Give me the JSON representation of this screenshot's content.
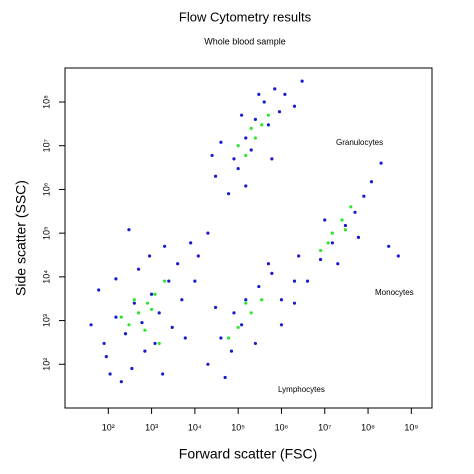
{
  "chart_data": {
    "type": "scatter",
    "title": "Flow Cytometry results",
    "subtitle": "Whole blood sample",
    "x_label": "Forward scatter (FSC)",
    "y_label": "Side scatter (SSC)",
    "log_x": true,
    "log_y": true,
    "grid": false,
    "xlim": [
      10,
      3000000000
    ],
    "ylim": [
      10,
      600000000
    ],
    "xticks": [
      {
        "value": 100,
        "label": "10²"
      },
      {
        "value": 1000,
        "label": "10³"
      },
      {
        "value": 10000,
        "label": "10⁴"
      },
      {
        "value": 100000,
        "label": "10⁵"
      },
      {
        "value": 1000000,
        "label": "10⁶"
      },
      {
        "value": 10000000,
        "label": "10⁷"
      },
      {
        "value": 100000000,
        "label": "10⁸"
      },
      {
        "value": 1000000000,
        "label": "10⁹"
      }
    ],
    "yticks": [
      {
        "value": 100,
        "label": "10²"
      },
      {
        "value": 1000,
        "label": "10³"
      },
      {
        "value": 10000,
        "label": "10⁴"
      },
      {
        "value": 100000,
        "label": "10⁵"
      },
      {
        "value": 1000000,
        "label": "10⁶"
      },
      {
        "value": 10000000,
        "label": "10⁷"
      },
      {
        "value": 100000000,
        "label": "10⁸"
      }
    ],
    "annotations": [
      "Granulocytes",
      "Monocytes",
      "Lymphocytes"
    ],
    "series": [
      {
        "color": "#1a1ad0",
        "x": [
          80,
          150,
          250,
          400,
          600,
          1000,
          1500,
          2500,
          4000,
          8000,
          12000,
          60,
          200,
          350,
          700,
          1200,
          90,
          3000,
          5000,
          20000,
          150,
          500,
          2000,
          300,
          900,
          110,
          40,
          6000,
          1800,
          10000,
          30000,
          80000,
          150000,
          250000,
          400000,
          700000,
          1200000,
          60000,
          100000,
          200000,
          500000,
          900000,
          40000,
          120000,
          300000,
          2000000,
          150000,
          600000,
          25000,
          3000000,
          20000,
          40000,
          80000,
          150000,
          300000,
          600000,
          1000000,
          50000,
          120000,
          250000,
          500000,
          30000,
          2000000,
          70000,
          1000000,
          2000000,
          4000000,
          8000000,
          15000000,
          30000000,
          50000000,
          80000000,
          120000000,
          20000000,
          60000000,
          10000000,
          300000000,
          500000000,
          200000000,
          2500000
        ],
        "y": [
          300,
          1200,
          500,
          2500,
          900,
          4000,
          1500,
          8000,
          20000,
          60000,
          30000,
          5000,
          40,
          80,
          200,
          300,
          150,
          700,
          3000,
          100000,
          9000,
          15000,
          50000,
          120000,
          30000,
          60,
          800,
          400,
          60,
          8000,
          2000000,
          5000000,
          15000000,
          40000000,
          100000000,
          200000000,
          150000000,
          800000,
          3000000,
          8000000,
          30000000,
          60000000,
          12000000,
          50000000,
          150000000,
          80000000,
          1200000,
          5000000,
          6000000,
          300000000,
          100,
          400,
          1500,
          3000,
          6000,
          12000,
          3000,
          50,
          800,
          300,
          20000,
          2000,
          8000,
          200,
          800,
          2500,
          8000,
          25000,
          60000,
          150000,
          300000,
          700000,
          1500000,
          20000,
          80000,
          200000,
          50000,
          30000,
          4000000,
          30000
        ]
      },
      {
        "color": "#2ee62e",
        "x": [
          300,
          500,
          800,
          1200,
          200,
          700,
          1000,
          400,
          2000,
          1500,
          150000,
          250000,
          350000,
          200000,
          500000,
          100000,
          100000,
          200000,
          350000,
          60000,
          150000,
          8000000,
          15000000,
          25000000,
          40000000,
          12000000,
          30000000
        ],
        "y": [
          800,
          1500,
          2500,
          4000,
          1200,
          600,
          1800,
          3000,
          8000,
          300,
          6000000,
          15000000,
          30000000,
          25000000,
          50000000,
          10000000,
          700,
          1500,
          3000,
          400,
          2500,
          40000,
          100000,
          200000,
          400000,
          60000,
          120000
        ]
      }
    ]
  }
}
